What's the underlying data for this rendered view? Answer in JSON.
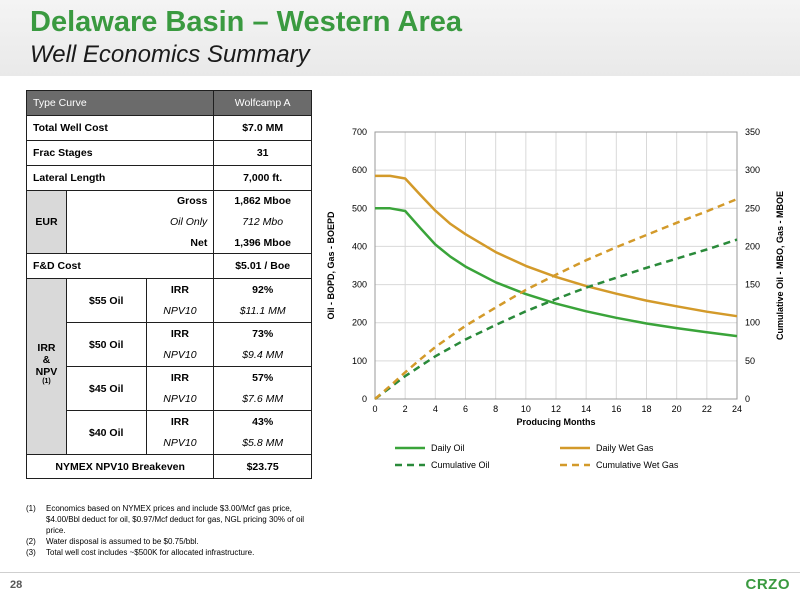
{
  "header": {
    "title": "Delaware Basin – Western Area",
    "subtitle": "Well Economics Summary"
  },
  "table": {
    "col_header_left": "Type Curve",
    "col_header_right": "Wolfcamp A",
    "total_well_cost": {
      "label": "Total Well Cost",
      "value": "$7.0 MM"
    },
    "frac_stages": {
      "label": "Frac Stages",
      "value": "31"
    },
    "lateral_length": {
      "label": "Lateral Length",
      "value": "7,000 ft."
    },
    "eur": {
      "label": "EUR",
      "gross_label": "Gross",
      "gross_value": "1,862 Mboe",
      "oil_label": "Oil Only",
      "oil_value": "712 Mbo",
      "net_label": "Net",
      "net_value": "1,396 Mboe"
    },
    "fd_cost": {
      "label": "F&D Cost",
      "value": "$5.01 / Boe"
    },
    "irr_npv": {
      "label_line1": "IRR",
      "label_line2": "&",
      "label_line3": "NPV",
      "label_sup": "(1)",
      "irr_label": "IRR",
      "npv_label": "NPV10",
      "cases": [
        {
          "price": "$55 Oil",
          "irr": "92%",
          "npv": "$11.1 MM"
        },
        {
          "price": "$50 Oil",
          "irr": "73%",
          "npv": "$9.4 MM"
        },
        {
          "price": "$45 Oil",
          "irr": "57%",
          "npv": "$7.6 MM"
        },
        {
          "price": "$40 Oil",
          "irr": "43%",
          "npv": "$5.8 MM"
        }
      ]
    },
    "breakeven": {
      "label": "NYMEX NPV10 Breakeven",
      "value": "$23.75"
    }
  },
  "notes": [
    {
      "num": "(1)",
      "text": "Economics based on NYMEX prices and include $3.00/Mcf gas price, $4.00/Bbl deduct for oil, $0.97/Mcf deduct for gas, NGL pricing 30% of oil price."
    },
    {
      "num": "(2)",
      "text": "Water disposal is assumed to be $0.75/bbl."
    },
    {
      "num": "(3)",
      "text": "Total well cost includes ~$500K for allocated infrastructure."
    }
  ],
  "footer": {
    "page_number": "28",
    "brand": "CRZO"
  },
  "chart_data": {
    "type": "line",
    "xlabel": "Producing Months",
    "ylabel_left": "Oil - BOPD, Gas - BOEPD",
    "ylabel_right": "Cumulative Oil - MBO, Gas - MBOE",
    "xlim": [
      0,
      24
    ],
    "ylim_left": [
      0,
      700
    ],
    "ylim_right": [
      0,
      350
    ],
    "x_ticks": [
      0,
      2,
      4,
      6,
      8,
      10,
      12,
      14,
      16,
      18,
      20,
      22,
      24
    ],
    "y_left_ticks": [
      0,
      100,
      200,
      300,
      400,
      500,
      600,
      700
    ],
    "y_right_ticks": [
      0,
      50,
      100,
      150,
      200,
      250,
      300,
      350
    ],
    "grid": true,
    "legend_position": "bottom",
    "x": [
      0,
      1,
      2,
      3,
      4,
      5,
      6,
      8,
      10,
      12,
      14,
      16,
      18,
      20,
      22,
      24
    ],
    "series": [
      {
        "name": "Daily Oil",
        "axis": "left",
        "style": "solid",
        "color": "#3aa43a",
        "values": [
          500,
          500,
          493,
          448,
          405,
          373,
          347,
          306,
          275,
          250,
          230,
          213,
          198,
          186,
          175,
          165
        ]
      },
      {
        "name": "Daily Wet Gas",
        "axis": "left",
        "style": "solid",
        "color": "#d39a2a",
        "values": [
          585,
          585,
          578,
          535,
          494,
          459,
          432,
          385,
          349,
          320,
          296,
          276,
          258,
          243,
          229,
          217
        ]
      },
      {
        "name": "Cumulative Oil",
        "axis": "right",
        "style": "dashed",
        "color": "#2a8a3a",
        "values": [
          0,
          15,
          30,
          43,
          56,
          67,
          78,
          97,
          115,
          131,
          146,
          159,
          172,
          184,
          196,
          209
        ]
      },
      {
        "name": "Cumulative Wet Gas",
        "axis": "right",
        "style": "dashed",
        "color": "#d39a2a",
        "values": [
          0,
          17,
          35,
          52,
          68,
          82,
          96,
          120,
          143,
          163,
          182,
          199,
          215,
          231,
          246,
          262
        ]
      }
    ]
  }
}
